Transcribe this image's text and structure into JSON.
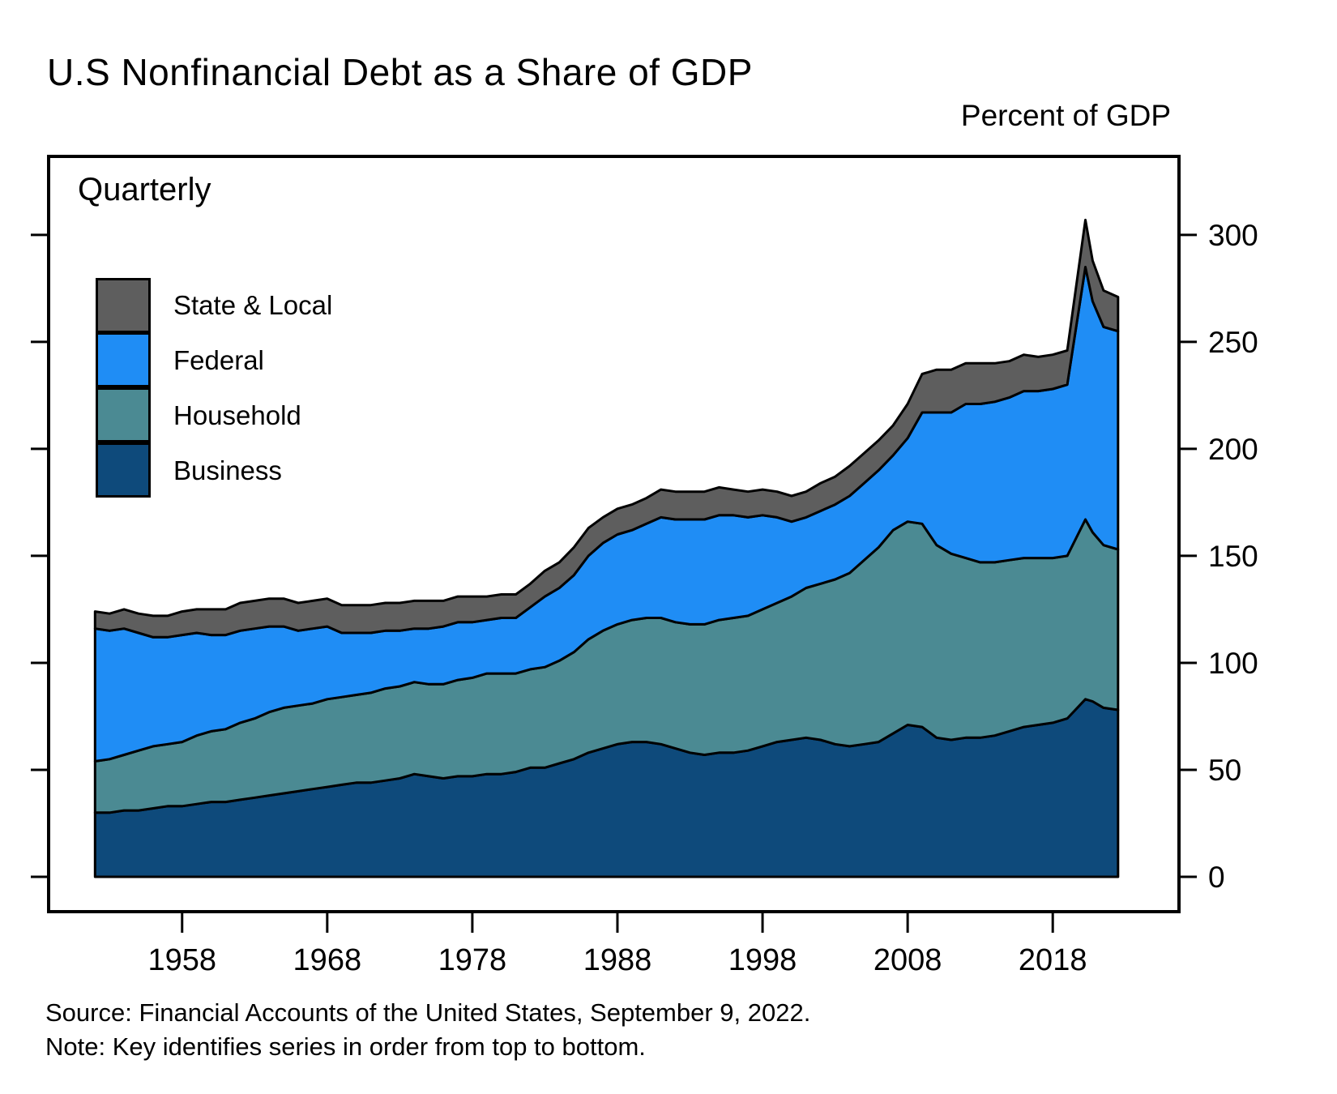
{
  "header": {
    "title": "U.S Nonfinancial Debt as a Share of GDP",
    "axis_unit_label": "Percent of GDP"
  },
  "plot": {
    "frequency_label": "Quarterly"
  },
  "legend": [
    {
      "label": "State & Local",
      "color": "#5e5e5e"
    },
    {
      "label": "Federal",
      "color": "#1f8df5"
    },
    {
      "label": "Household",
      "color": "#4b8a93"
    },
    {
      "label": "Business",
      "color": "#0e4a7b"
    }
  ],
  "footer": {
    "source": "Source: Financial Accounts of the United States, September 9, 2022.",
    "note": "Note: Key identifies series in order from top to bottom."
  },
  "chart_data": {
    "type": "area",
    "stacked": true,
    "title": "U.S Nonfinancial Debt as a Share of GDP",
    "ylabel": "Percent of GDP",
    "frequency": "Quarterly",
    "legend_position": "upper left",
    "grid": false,
    "x_ticks": [
      1958,
      1968,
      1978,
      1988,
      1998,
      2008,
      2018
    ],
    "y_ticks": [
      0,
      50,
      100,
      150,
      200,
      250,
      300
    ],
    "axes": {
      "x_min": 1948.8,
      "x_max": 2026.7,
      "y_min": -16.3,
      "y_max": 336.7
    },
    "x": [
      1952,
      1953,
      1954,
      1955,
      1956,
      1957,
      1958,
      1959,
      1960,
      1961,
      1962,
      1963,
      1964,
      1965,
      1966,
      1967,
      1968,
      1969,
      1970,
      1971,
      1972,
      1973,
      1974,
      1975,
      1976,
      1977,
      1978,
      1979,
      1980,
      1981,
      1982,
      1983,
      1984,
      1985,
      1986,
      1987,
      1988,
      1989,
      1990,
      1991,
      1992,
      1993,
      1994,
      1995,
      1996,
      1997,
      1998,
      1999,
      2000,
      2001,
      2002,
      2003,
      2004,
      2005,
      2006,
      2007,
      2008,
      2009,
      2010,
      2011,
      2012,
      2013,
      2014,
      2015,
      2016,
      2017,
      2018,
      2019,
      2020.25,
      2020.75,
      2021.5,
      2022.5
    ],
    "series": [
      {
        "name": "Business",
        "color": "#0e4a7b",
        "values": [
          30,
          30,
          31,
          31,
          32,
          33,
          33,
          34,
          35,
          35,
          36,
          37,
          38,
          39,
          40,
          41,
          42,
          43,
          44,
          44,
          45,
          46,
          48,
          47,
          46,
          47,
          47,
          48,
          48,
          49,
          51,
          51,
          53,
          55,
          58,
          60,
          62,
          63,
          63,
          62,
          60,
          58,
          57,
          58,
          58,
          59,
          61,
          63,
          64,
          65,
          64,
          62,
          61,
          62,
          63,
          67,
          71,
          70,
          65,
          64,
          65,
          65,
          66,
          68,
          70,
          71,
          72,
          74,
          83,
          82,
          79,
          78
        ]
      },
      {
        "name": "Household",
        "color": "#4b8a93",
        "values": [
          24,
          25,
          26,
          28,
          29,
          29,
          30,
          32,
          33,
          34,
          36,
          37,
          39,
          40,
          40,
          40,
          41,
          41,
          41,
          42,
          43,
          43,
          43,
          43,
          44,
          45,
          46,
          47,
          47,
          46,
          46,
          47,
          48,
          50,
          53,
          55,
          56,
          57,
          58,
          59,
          59,
          60,
          61,
          62,
          63,
          63,
          64,
          65,
          67,
          70,
          73,
          77,
          81,
          86,
          91,
          95,
          95,
          95,
          90,
          87,
          84,
          82,
          81,
          80,
          79,
          78,
          77,
          76,
          84,
          79,
          76,
          75
        ]
      },
      {
        "name": "Federal",
        "color": "#1f8df5",
        "values": [
          62,
          60,
          59,
          55,
          51,
          50,
          50,
          48,
          45,
          44,
          43,
          42,
          40,
          38,
          35,
          35,
          34,
          30,
          29,
          28,
          27,
          26,
          25,
          26,
          27,
          27,
          26,
          25,
          26,
          26,
          29,
          33,
          34,
          36,
          39,
          41,
          42,
          42,
          44,
          47,
          48,
          49,
          49,
          49,
          48,
          46,
          44,
          40,
          35,
          33,
          34,
          35,
          36,
          36,
          36,
          35,
          39,
          52,
          62,
          66,
          72,
          74,
          75,
          76,
          78,
          78,
          79,
          80,
          118,
          108,
          102,
          102
        ]
      },
      {
        "name": "State & Local",
        "color": "#5e5e5e",
        "values": [
          8,
          8,
          9,
          9,
          10,
          10,
          11,
          11,
          12,
          12,
          13,
          13,
          13,
          13,
          13,
          13,
          13,
          13,
          13,
          13,
          13,
          13,
          13,
          13,
          12,
          12,
          12,
          11,
          11,
          11,
          11,
          12,
          12,
          13,
          13,
          12,
          12,
          12,
          12,
          13,
          13,
          13,
          13,
          13,
          12,
          12,
          12,
          12,
          12,
          12,
          13,
          13,
          14,
          14,
          14,
          14,
          16,
          18,
          20,
          20,
          19,
          19,
          18,
          17,
          17,
          16,
          16,
          16,
          22,
          19,
          17,
          16
        ]
      }
    ],
    "stack_note": "series listed bottom-to-top; legend shows top-to-bottom"
  }
}
